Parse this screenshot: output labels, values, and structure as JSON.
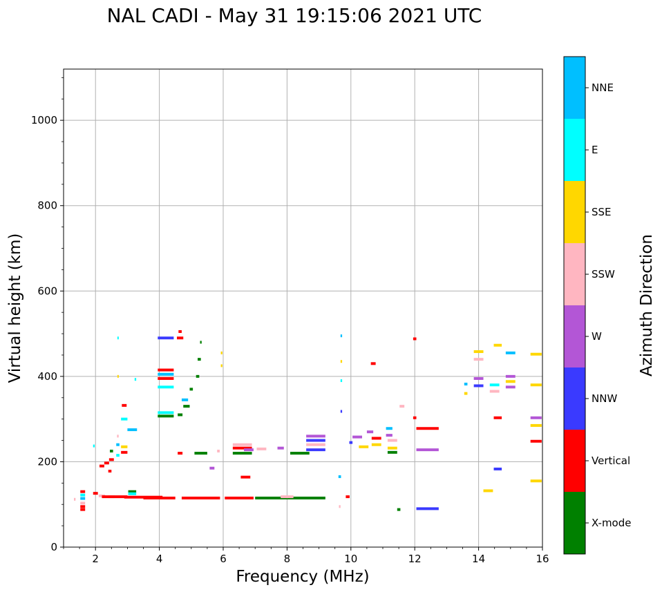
{
  "chart_data": {
    "type": "scatter",
    "title": "NAL CADI - May 31 19:15:06 2021 UTC",
    "xlabel": "Frequency (MHz)",
    "ylabel": "Virtual height (km)",
    "xlim": [
      1,
      16
    ],
    "ylim": [
      0,
      1120
    ],
    "xticks": [
      2,
      4,
      6,
      8,
      10,
      12,
      14,
      16
    ],
    "yticks": [
      0,
      200,
      400,
      600,
      800,
      1000
    ],
    "grid": true,
    "colorbar": {
      "label": "Azimuth Direction",
      "categories": [
        {
          "name": "X-mode",
          "color": "#008000"
        },
        {
          "name": "Vertical",
          "color": "#ff0000"
        },
        {
          "name": "NNW",
          "color": "#3a3aff"
        },
        {
          "name": "W",
          "color": "#b356d6"
        },
        {
          "name": "SSW",
          "color": "#ffb6c1"
        },
        {
          "name": "SSE",
          "color": "#ffd700"
        },
        {
          "name": "E",
          "color": "#00ffff"
        },
        {
          "name": "NNE",
          "color": "#00bfff"
        }
      ]
    },
    "points": [
      {
        "f": 1.35,
        "h": 112,
        "df": 0.05,
        "dir": "SSW"
      },
      {
        "f": 1.6,
        "h": 130,
        "df": 0.15,
        "dir": "Vertical"
      },
      {
        "f": 1.6,
        "h": 122,
        "df": 0.15,
        "dir": "E"
      },
      {
        "f": 1.6,
        "h": 114,
        "df": 0.15,
        "dir": "NNE"
      },
      {
        "f": 1.6,
        "h": 103,
        "df": 0.15,
        "dir": "SSW"
      },
      {
        "f": 1.6,
        "h": 95,
        "df": 0.15,
        "dir": "Vertical"
      },
      {
        "f": 1.6,
        "h": 88,
        "df": 0.15,
        "dir": "Vertical"
      },
      {
        "f": 2.0,
        "h": 126,
        "df": 0.15,
        "dir": "Vertical"
      },
      {
        "f": 2.2,
        "h": 120,
        "df": 0.2,
        "dir": "SSW"
      },
      {
        "f": 2.5,
        "h": 118,
        "df": 0.2,
        "dir": "SSW"
      },
      {
        "f": 1.95,
        "h": 237,
        "df": 0.05,
        "dir": "E"
      },
      {
        "f": 2.2,
        "h": 190,
        "df": 0.15,
        "dir": "Vertical"
      },
      {
        "f": 2.35,
        "h": 197,
        "df": 0.15,
        "dir": "Vertical"
      },
      {
        "f": 2.5,
        "h": 205,
        "df": 0.15,
        "dir": "Vertical"
      },
      {
        "f": 2.45,
        "h": 178,
        "df": 0.1,
        "dir": "Vertical"
      },
      {
        "f": 2.5,
        "h": 225,
        "df": 0.1,
        "dir": "X-mode"
      },
      {
        "f": 2.7,
        "h": 240,
        "df": 0.1,
        "dir": "NNE"
      },
      {
        "f": 2.7,
        "h": 260,
        "df": 0.05,
        "dir": "SSW"
      },
      {
        "f": 2.7,
        "h": 215,
        "df": 0.1,
        "dir": "E"
      },
      {
        "f": 2.7,
        "h": 490,
        "df": 0.03,
        "dir": "E"
      },
      {
        "f": 2.7,
        "h": 400,
        "df": 0.03,
        "dir": "SSE"
      },
      {
        "f": 2.9,
        "h": 300,
        "df": 0.2,
        "dir": "E"
      },
      {
        "f": 2.9,
        "h": 332,
        "df": 0.15,
        "dir": "Vertical"
      },
      {
        "f": 2.9,
        "h": 235,
        "df": 0.2,
        "dir": "SSE"
      },
      {
        "f": 2.9,
        "h": 222,
        "df": 0.2,
        "dir": "Vertical"
      },
      {
        "f": 3.15,
        "h": 275,
        "df": 0.3,
        "dir": "NNE"
      },
      {
        "f": 3.15,
        "h": 130,
        "df": 0.25,
        "dir": "X-mode"
      },
      {
        "f": 3.15,
        "h": 125,
        "df": 0.25,
        "dir": "E"
      },
      {
        "f": 3.25,
        "h": 393,
        "df": 0.05,
        "dir": "E"
      },
      {
        "f": 2.6,
        "h": 118,
        "df": 0.8,
        "dir": "Vertical"
      },
      {
        "f": 3.5,
        "h": 117,
        "df": 1.2,
        "dir": "Vertical"
      },
      {
        "f": 4.2,
        "h": 490,
        "df": 0.5,
        "dir": "NNW"
      },
      {
        "f": 4.2,
        "h": 415,
        "df": 0.5,
        "dir": "Vertical"
      },
      {
        "f": 4.2,
        "h": 405,
        "df": 0.5,
        "dir": "NNE"
      },
      {
        "f": 4.2,
        "h": 395,
        "df": 0.5,
        "dir": "Vertical"
      },
      {
        "f": 4.2,
        "h": 375,
        "df": 0.5,
        "dir": "E"
      },
      {
        "f": 4.2,
        "h": 315,
        "df": 0.5,
        "dir": "E"
      },
      {
        "f": 4.2,
        "h": 307,
        "df": 0.5,
        "dir": "X-mode"
      },
      {
        "f": 4.65,
        "h": 505,
        "df": 0.1,
        "dir": "Vertical"
      },
      {
        "f": 4.65,
        "h": 490,
        "df": 0.2,
        "dir": "Vertical"
      },
      {
        "f": 4.65,
        "h": 310,
        "df": 0.15,
        "dir": "X-mode"
      },
      {
        "f": 4.65,
        "h": 220,
        "df": 0.15,
        "dir": "Vertical"
      },
      {
        "f": 4.8,
        "h": 345,
        "df": 0.2,
        "dir": "NNE"
      },
      {
        "f": 4.85,
        "h": 330,
        "df": 0.2,
        "dir": "X-mode"
      },
      {
        "f": 5.0,
        "h": 370,
        "df": 0.1,
        "dir": "X-mode"
      },
      {
        "f": 5.2,
        "h": 400,
        "df": 0.1,
        "dir": "X-mode"
      },
      {
        "f": 5.25,
        "h": 440,
        "df": 0.1,
        "dir": "X-mode"
      },
      {
        "f": 5.3,
        "h": 480,
        "df": 0.05,
        "dir": "X-mode"
      },
      {
        "f": 5.3,
        "h": 220,
        "df": 0.4,
        "dir": "X-mode"
      },
      {
        "f": 4.0,
        "h": 115,
        "df": 1.0,
        "dir": "Vertical"
      },
      {
        "f": 5.3,
        "h": 115,
        "df": 1.2,
        "dir": "Vertical"
      },
      {
        "f": 6.5,
        "h": 115,
        "df": 0.9,
        "dir": "Vertical"
      },
      {
        "f": 7.5,
        "h": 115,
        "df": 1.0,
        "dir": "X-mode"
      },
      {
        "f": 8.6,
        "h": 115,
        "df": 1.2,
        "dir": "X-mode"
      },
      {
        "f": 8.0,
        "h": 118,
        "df": 0.4,
        "dir": "SSW"
      },
      {
        "f": 9.9,
        "h": 118,
        "df": 0.12,
        "dir": "Vertical"
      },
      {
        "f": 6.6,
        "h": 220,
        "df": 0.6,
        "dir": "X-mode"
      },
      {
        "f": 6.6,
        "h": 232,
        "df": 0.6,
        "dir": "Vertical"
      },
      {
        "f": 6.6,
        "h": 240,
        "df": 0.6,
        "dir": "SSW"
      },
      {
        "f": 6.8,
        "h": 228,
        "df": 0.3,
        "dir": "W"
      },
      {
        "f": 6.7,
        "h": 164,
        "df": 0.3,
        "dir": "Vertical"
      },
      {
        "f": 7.2,
        "h": 230,
        "df": 0.3,
        "dir": "SSW"
      },
      {
        "f": 7.8,
        "h": 232,
        "df": 0.2,
        "dir": "W"
      },
      {
        "f": 8.4,
        "h": 220,
        "df": 0.6,
        "dir": "X-mode"
      },
      {
        "f": 8.9,
        "h": 260,
        "df": 0.6,
        "dir": "W"
      },
      {
        "f": 8.9,
        "h": 250,
        "df": 0.6,
        "dir": "NNW"
      },
      {
        "f": 8.9,
        "h": 240,
        "df": 0.6,
        "dir": "SSW"
      },
      {
        "f": 8.9,
        "h": 228,
        "df": 0.6,
        "dir": "NNW"
      },
      {
        "f": 5.85,
        "h": 225,
        "df": 0.08,
        "dir": "SSW"
      },
      {
        "f": 5.95,
        "h": 455,
        "df": 0.05,
        "dir": "SSE"
      },
      {
        "f": 5.95,
        "h": 425,
        "df": 0.05,
        "dir": "SSE"
      },
      {
        "f": 5.65,
        "h": 185,
        "df": 0.15,
        "dir": "W"
      },
      {
        "f": 9.7,
        "h": 495,
        "df": 0.05,
        "dir": "NNE"
      },
      {
        "f": 9.7,
        "h": 435,
        "df": 0.05,
        "dir": "SSE"
      },
      {
        "f": 9.7,
        "h": 390,
        "df": 0.05,
        "dir": "E"
      },
      {
        "f": 9.7,
        "h": 318,
        "df": 0.05,
        "dir": "NNW"
      },
      {
        "f": 9.65,
        "h": 165,
        "df": 0.08,
        "dir": "NNE"
      },
      {
        "f": 9.65,
        "h": 95,
        "df": 0.05,
        "dir": "SSW"
      },
      {
        "f": 10.0,
        "h": 245,
        "df": 0.1,
        "dir": "NNW"
      },
      {
        "f": 10.2,
        "h": 258,
        "df": 0.3,
        "dir": "W"
      },
      {
        "f": 10.4,
        "h": 235,
        "df": 0.3,
        "dir": "SSE"
      },
      {
        "f": 10.6,
        "h": 270,
        "df": 0.2,
        "dir": "W"
      },
      {
        "f": 10.8,
        "h": 255,
        "df": 0.3,
        "dir": "Vertical"
      },
      {
        "f": 10.8,
        "h": 240,
        "df": 0.3,
        "dir": "SSE"
      },
      {
        "f": 10.7,
        "h": 430,
        "df": 0.15,
        "dir": "Vertical"
      },
      {
        "f": 11.2,
        "h": 278,
        "df": 0.2,
        "dir": "NNE"
      },
      {
        "f": 11.2,
        "h": 262,
        "df": 0.2,
        "dir": "W"
      },
      {
        "f": 11.3,
        "h": 250,
        "df": 0.3,
        "dir": "SSW"
      },
      {
        "f": 11.3,
        "h": 232,
        "df": 0.3,
        "dir": "SSE"
      },
      {
        "f": 11.3,
        "h": 222,
        "df": 0.3,
        "dir": "X-mode"
      },
      {
        "f": 11.5,
        "h": 88,
        "df": 0.1,
        "dir": "X-mode"
      },
      {
        "f": 11.6,
        "h": 330,
        "df": 0.15,
        "dir": "SSW"
      },
      {
        "f": 12.0,
        "h": 488,
        "df": 0.1,
        "dir": "Vertical"
      },
      {
        "f": 12.0,
        "h": 303,
        "df": 0.1,
        "dir": "Vertical"
      },
      {
        "f": 12.4,
        "h": 278,
        "df": 0.7,
        "dir": "Vertical"
      },
      {
        "f": 12.4,
        "h": 228,
        "df": 0.7,
        "dir": "W"
      },
      {
        "f": 12.4,
        "h": 90,
        "df": 0.7,
        "dir": "NNW"
      },
      {
        "f": 13.6,
        "h": 382,
        "df": 0.1,
        "dir": "NNE"
      },
      {
        "f": 13.6,
        "h": 360,
        "df": 0.1,
        "dir": "SSE"
      },
      {
        "f": 14.0,
        "h": 458,
        "df": 0.3,
        "dir": "SSE"
      },
      {
        "f": 14.0,
        "h": 440,
        "df": 0.3,
        "dir": "SSW"
      },
      {
        "f": 14.0,
        "h": 395,
        "df": 0.3,
        "dir": "W"
      },
      {
        "f": 14.0,
        "h": 378,
        "df": 0.3,
        "dir": "NNW"
      },
      {
        "f": 14.5,
        "h": 365,
        "df": 0.3,
        "dir": "SSW"
      },
      {
        "f": 14.5,
        "h": 380,
        "df": 0.3,
        "dir": "E"
      },
      {
        "f": 14.6,
        "h": 303,
        "df": 0.25,
        "dir": "Vertical"
      },
      {
        "f": 14.6,
        "h": 183,
        "df": 0.25,
        "dir": "NNW"
      },
      {
        "f": 14.3,
        "h": 132,
        "df": 0.3,
        "dir": "SSE"
      },
      {
        "f": 14.6,
        "h": 473,
        "df": 0.25,
        "dir": "SSE"
      },
      {
        "f": 15.0,
        "h": 455,
        "df": 0.3,
        "dir": "NNE"
      },
      {
        "f": 15.0,
        "h": 400,
        "df": 0.3,
        "dir": "W"
      },
      {
        "f": 15.0,
        "h": 388,
        "df": 0.3,
        "dir": "SSE"
      },
      {
        "f": 15.0,
        "h": 375,
        "df": 0.3,
        "dir": "W"
      },
      {
        "f": 15.8,
        "h": 452,
        "df": 0.35,
        "dir": "SSE"
      },
      {
        "f": 15.8,
        "h": 380,
        "df": 0.35,
        "dir": "SSE"
      },
      {
        "f": 15.8,
        "h": 303,
        "df": 0.35,
        "dir": "W"
      },
      {
        "f": 15.8,
        "h": 285,
        "df": 0.35,
        "dir": "SSE"
      },
      {
        "f": 15.8,
        "h": 248,
        "df": 0.35,
        "dir": "Vertical"
      },
      {
        "f": 15.8,
        "h": 155,
        "df": 0.35,
        "dir": "SSE"
      }
    ]
  }
}
